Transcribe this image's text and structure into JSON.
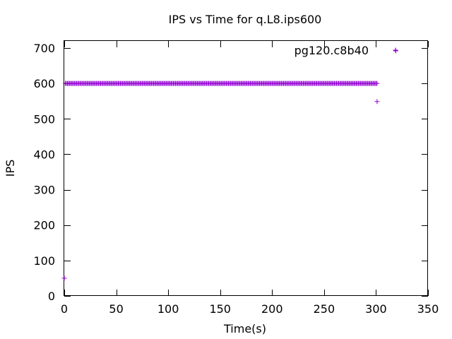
{
  "chart_data": {
    "type": "scatter",
    "title": "IPS vs Time for q.L8.ips600",
    "xlabel": "Time(s)",
    "ylabel": "IPS",
    "xlim": [
      0,
      350
    ],
    "ylim": [
      0,
      720
    ],
    "xticks": [
      0,
      50,
      100,
      150,
      200,
      250,
      300,
      350
    ],
    "yticks": [
      0,
      100,
      200,
      300,
      400,
      500,
      600,
      700
    ],
    "grid": false,
    "legend_position": "top-right",
    "series": [
      {
        "name": "pg120.c8b40",
        "color": "#9400d3",
        "marker": "plus",
        "points_summary": "x = 1..301 step 1 at y = 600",
        "points": [
          [
            0,
            50
          ],
          [
            1,
            600
          ],
          [
            2,
            600
          ],
          [
            3,
            600
          ],
          [
            4,
            600
          ],
          [
            5,
            600
          ],
          [
            6,
            600
          ],
          [
            7,
            600
          ],
          [
            8,
            600
          ],
          [
            9,
            600
          ],
          [
            10,
            600
          ],
          [
            11,
            600
          ],
          [
            12,
            600
          ],
          [
            13,
            600
          ],
          [
            14,
            600
          ],
          [
            15,
            600
          ],
          [
            16,
            600
          ],
          [
            17,
            600
          ],
          [
            18,
            600
          ],
          [
            19,
            600
          ],
          [
            20,
            600
          ],
          [
            21,
            600
          ],
          [
            22,
            600
          ],
          [
            23,
            600
          ],
          [
            24,
            600
          ],
          [
            25,
            600
          ],
          [
            26,
            600
          ],
          [
            27,
            600
          ],
          [
            28,
            600
          ],
          [
            29,
            600
          ],
          [
            30,
            600
          ],
          [
            31,
            600
          ],
          [
            32,
            600
          ],
          [
            33,
            600
          ],
          [
            34,
            600
          ],
          [
            35,
            600
          ],
          [
            36,
            600
          ],
          [
            37,
            600
          ],
          [
            38,
            600
          ],
          [
            39,
            600
          ],
          [
            40,
            600
          ],
          [
            41,
            600
          ],
          [
            42,
            600
          ],
          [
            43,
            600
          ],
          [
            44,
            600
          ],
          [
            45,
            600
          ],
          [
            46,
            600
          ],
          [
            47,
            600
          ],
          [
            48,
            600
          ],
          [
            49,
            600
          ],
          [
            50,
            600
          ],
          [
            51,
            600
          ],
          [
            52,
            600
          ],
          [
            53,
            600
          ],
          [
            54,
            600
          ],
          [
            55,
            600
          ],
          [
            56,
            600
          ],
          [
            57,
            600
          ],
          [
            58,
            600
          ],
          [
            59,
            600
          ],
          [
            60,
            600
          ],
          [
            61,
            600
          ],
          [
            62,
            600
          ],
          [
            63,
            600
          ],
          [
            64,
            600
          ],
          [
            65,
            600
          ],
          [
            66,
            600
          ],
          [
            67,
            600
          ],
          [
            68,
            600
          ],
          [
            69,
            600
          ],
          [
            70,
            600
          ],
          [
            71,
            600
          ],
          [
            72,
            600
          ],
          [
            73,
            600
          ],
          [
            74,
            600
          ],
          [
            75,
            600
          ],
          [
            76,
            600
          ],
          [
            77,
            600
          ],
          [
            78,
            600
          ],
          [
            79,
            600
          ],
          [
            80,
            600
          ],
          [
            81,
            600
          ],
          [
            82,
            600
          ],
          [
            83,
            600
          ],
          [
            84,
            600
          ],
          [
            85,
            600
          ],
          [
            86,
            600
          ],
          [
            87,
            600
          ],
          [
            88,
            600
          ],
          [
            89,
            600
          ],
          [
            90,
            600
          ],
          [
            91,
            600
          ],
          [
            92,
            600
          ],
          [
            93,
            600
          ],
          [
            94,
            600
          ],
          [
            95,
            600
          ],
          [
            96,
            600
          ],
          [
            97,
            600
          ],
          [
            98,
            600
          ],
          [
            99,
            600
          ],
          [
            100,
            600
          ],
          [
            101,
            600
          ],
          [
            102,
            600
          ],
          [
            103,
            600
          ],
          [
            104,
            600
          ],
          [
            105,
            600
          ],
          [
            106,
            600
          ],
          [
            107,
            600
          ],
          [
            108,
            600
          ],
          [
            109,
            600
          ],
          [
            110,
            600
          ],
          [
            111,
            600
          ],
          [
            112,
            600
          ],
          [
            113,
            600
          ],
          [
            114,
            600
          ],
          [
            115,
            600
          ],
          [
            116,
            600
          ],
          [
            117,
            600
          ],
          [
            118,
            600
          ],
          [
            119,
            600
          ],
          [
            120,
            600
          ],
          [
            121,
            600
          ],
          [
            122,
            600
          ],
          [
            123,
            600
          ],
          [
            124,
            600
          ],
          [
            125,
            600
          ],
          [
            126,
            600
          ],
          [
            127,
            600
          ],
          [
            128,
            600
          ],
          [
            129,
            600
          ],
          [
            130,
            600
          ],
          [
            131,
            600
          ],
          [
            132,
            600
          ],
          [
            133,
            600
          ],
          [
            134,
            600
          ],
          [
            135,
            600
          ],
          [
            136,
            600
          ],
          [
            137,
            600
          ],
          [
            138,
            600
          ],
          [
            139,
            600
          ],
          [
            140,
            600
          ],
          [
            141,
            600
          ],
          [
            142,
            600
          ],
          [
            143,
            600
          ],
          [
            144,
            600
          ],
          [
            145,
            600
          ],
          [
            146,
            600
          ],
          [
            147,
            600
          ],
          [
            148,
            600
          ],
          [
            149,
            600
          ],
          [
            150,
            600
          ],
          [
            151,
            600
          ],
          [
            152,
            600
          ],
          [
            153,
            600
          ],
          [
            154,
            600
          ],
          [
            155,
            600
          ],
          [
            156,
            600
          ],
          [
            157,
            600
          ],
          [
            158,
            600
          ],
          [
            159,
            600
          ],
          [
            160,
            600
          ],
          [
            161,
            600
          ],
          [
            162,
            600
          ],
          [
            163,
            600
          ],
          [
            164,
            600
          ],
          [
            165,
            600
          ],
          [
            166,
            600
          ],
          [
            167,
            600
          ],
          [
            168,
            600
          ],
          [
            169,
            600
          ],
          [
            170,
            600
          ],
          [
            171,
            600
          ],
          [
            172,
            600
          ],
          [
            173,
            600
          ],
          [
            174,
            600
          ],
          [
            175,
            600
          ],
          [
            176,
            600
          ],
          [
            177,
            600
          ],
          [
            178,
            600
          ],
          [
            179,
            600
          ],
          [
            180,
            600
          ],
          [
            181,
            600
          ],
          [
            182,
            600
          ],
          [
            183,
            600
          ],
          [
            184,
            600
          ],
          [
            185,
            600
          ],
          [
            186,
            600
          ],
          [
            187,
            600
          ],
          [
            188,
            600
          ],
          [
            189,
            600
          ],
          [
            190,
            600
          ],
          [
            191,
            600
          ],
          [
            192,
            600
          ],
          [
            193,
            600
          ],
          [
            194,
            600
          ],
          [
            195,
            600
          ],
          [
            196,
            600
          ],
          [
            197,
            600
          ],
          [
            198,
            600
          ],
          [
            199,
            600
          ],
          [
            200,
            600
          ],
          [
            201,
            600
          ],
          [
            202,
            600
          ],
          [
            203,
            600
          ],
          [
            204,
            600
          ],
          [
            205,
            600
          ],
          [
            206,
            600
          ],
          [
            207,
            600
          ],
          [
            208,
            600
          ],
          [
            209,
            600
          ],
          [
            210,
            600
          ],
          [
            211,
            600
          ],
          [
            212,
            600
          ],
          [
            213,
            600
          ],
          [
            214,
            600
          ],
          [
            215,
            600
          ],
          [
            216,
            600
          ],
          [
            217,
            600
          ],
          [
            218,
            600
          ],
          [
            219,
            600
          ],
          [
            220,
            600
          ],
          [
            221,
            600
          ],
          [
            222,
            600
          ],
          [
            223,
            600
          ],
          [
            224,
            600
          ],
          [
            225,
            600
          ],
          [
            226,
            600
          ],
          [
            227,
            600
          ],
          [
            228,
            600
          ],
          [
            229,
            600
          ],
          [
            230,
            600
          ],
          [
            231,
            600
          ],
          [
            232,
            600
          ],
          [
            233,
            600
          ],
          [
            234,
            600
          ],
          [
            235,
            600
          ],
          [
            236,
            600
          ],
          [
            237,
            600
          ],
          [
            238,
            600
          ],
          [
            239,
            600
          ],
          [
            240,
            600
          ],
          [
            241,
            600
          ],
          [
            242,
            600
          ],
          [
            243,
            600
          ],
          [
            244,
            600
          ],
          [
            245,
            600
          ],
          [
            246,
            600
          ],
          [
            247,
            600
          ],
          [
            248,
            600
          ],
          [
            249,
            600
          ],
          [
            250,
            600
          ],
          [
            251,
            600
          ],
          [
            252,
            600
          ],
          [
            253,
            600
          ],
          [
            254,
            600
          ],
          [
            255,
            600
          ],
          [
            256,
            600
          ],
          [
            257,
            600
          ],
          [
            258,
            600
          ],
          [
            259,
            600
          ],
          [
            260,
            600
          ],
          [
            261,
            600
          ],
          [
            262,
            600
          ],
          [
            263,
            600
          ],
          [
            264,
            600
          ],
          [
            265,
            600
          ],
          [
            266,
            600
          ],
          [
            267,
            600
          ],
          [
            268,
            600
          ],
          [
            269,
            600
          ],
          [
            270,
            600
          ],
          [
            271,
            600
          ],
          [
            272,
            600
          ],
          [
            273,
            600
          ],
          [
            274,
            600
          ],
          [
            275,
            600
          ],
          [
            276,
            600
          ],
          [
            277,
            600
          ],
          [
            278,
            600
          ],
          [
            279,
            600
          ],
          [
            280,
            600
          ],
          [
            281,
            600
          ],
          [
            282,
            600
          ],
          [
            283,
            600
          ],
          [
            284,
            600
          ],
          [
            285,
            600
          ],
          [
            286,
            600
          ],
          [
            287,
            600
          ],
          [
            288,
            600
          ],
          [
            289,
            600
          ],
          [
            290,
            600
          ],
          [
            291,
            600
          ],
          [
            292,
            600
          ],
          [
            293,
            600
          ],
          [
            294,
            600
          ],
          [
            295,
            600
          ],
          [
            296,
            600
          ],
          [
            297,
            600
          ],
          [
            298,
            600
          ],
          [
            299,
            600
          ],
          [
            300,
            600
          ],
          [
            301,
            600
          ],
          [
            301,
            549
          ],
          [
            319,
            692
          ]
        ]
      }
    ]
  }
}
